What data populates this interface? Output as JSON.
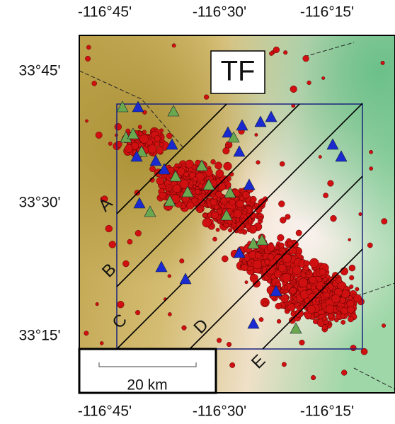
{
  "map": {
    "title": "TF",
    "top_ticks": [
      "-116°45'",
      "-116°30'",
      "-116°15'"
    ],
    "bottom_ticks": [
      "-116°45'",
      "-116°30'",
      "-116°15'"
    ],
    "left_ticks": [
      "33°45'",
      "33°30'",
      "33°15'"
    ],
    "profiles": [
      "A",
      "B",
      "C",
      "D",
      "E"
    ],
    "scale_bar": "20 km"
  }
}
